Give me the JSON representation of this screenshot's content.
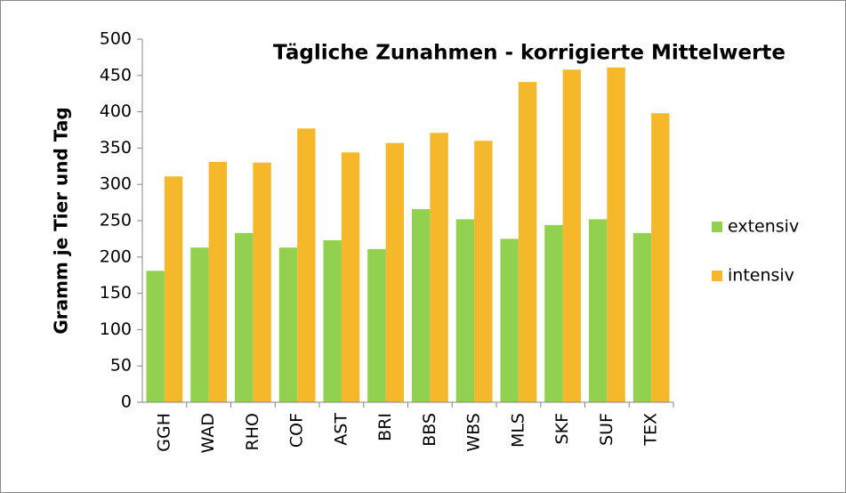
{
  "chart_data": {
    "type": "bar",
    "title": "Tägliche Zunahmen - korrigierte Mittelwerte",
    "y_label": "Gramm je Tier und Tag",
    "categories": [
      "GGH",
      "WAD",
      "RHO",
      "COF",
      "AST",
      "BRI",
      "BBS",
      "WBS",
      "MLS",
      "SKF",
      "SUF",
      "TEX"
    ],
    "series": [
      {
        "name": "extensiv",
        "color": "#92d050",
        "values": [
          181,
          213,
          233,
          213,
          223,
          211,
          266,
          252,
          225,
          244,
          252,
          233
        ]
      },
      {
        "name": "intensiv",
        "color": "#f4b82a",
        "values": [
          311,
          331,
          330,
          377,
          344,
          357,
          371,
          360,
          441,
          458,
          461,
          398
        ]
      }
    ],
    "ylim": [
      0,
      500
    ],
    "yticks": [
      0,
      50,
      100,
      150,
      200,
      250,
      300,
      350,
      400,
      450,
      500
    ],
    "grid": false,
    "legend": "right"
  }
}
